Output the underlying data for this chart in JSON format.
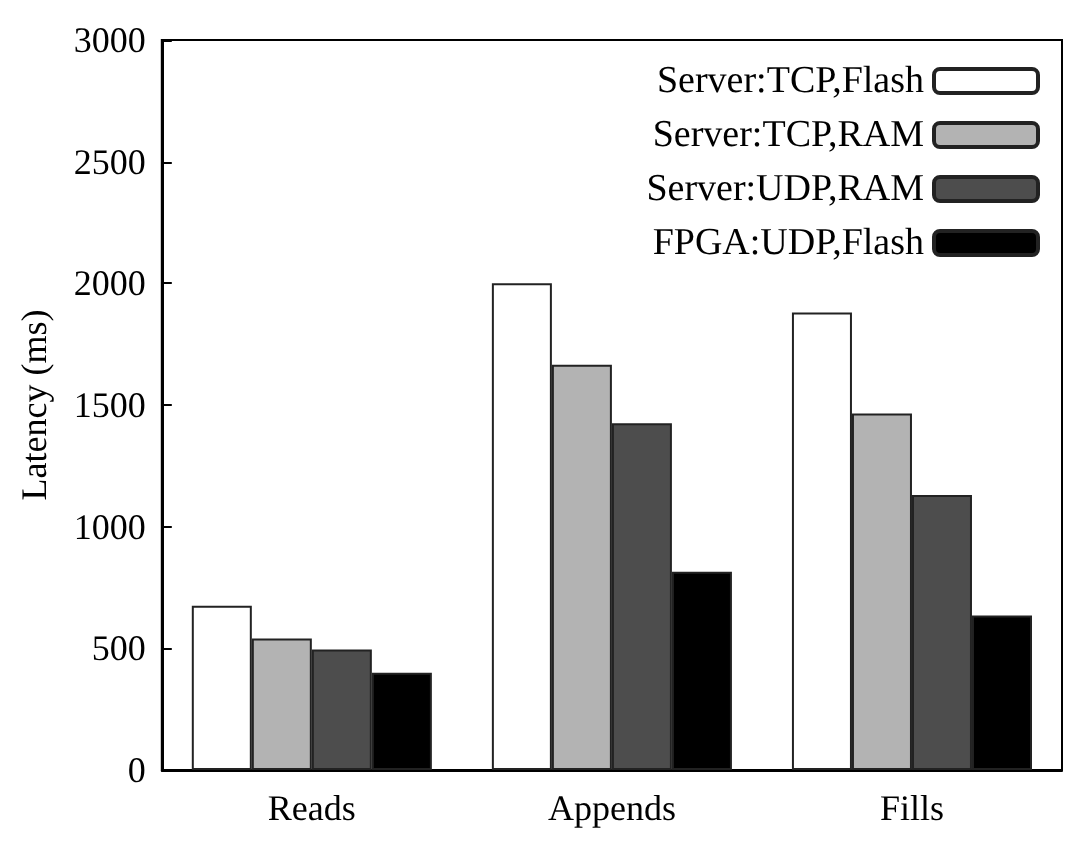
{
  "chart_data": {
    "type": "bar",
    "ylabel": "Latency (ms)",
    "categories": [
      "Reads",
      "Appends",
      "Fills"
    ],
    "series": [
      {
        "name": "Server:TCP,Flash",
        "color": "#ffffff",
        "values": [
          675,
          2000,
          1880
        ]
      },
      {
        "name": "Server:TCP,RAM",
        "color": "#b3b3b3",
        "values": [
          540,
          1665,
          1465
        ]
      },
      {
        "name": "Server:UDP,RAM",
        "color": "#4d4d4d",
        "values": [
          495,
          1425,
          1130
        ]
      },
      {
        "name": "FPGA:UDP,Flash",
        "color": "#000000",
        "values": [
          400,
          815,
          635
        ]
      }
    ],
    "ylim": [
      0,
      3000
    ],
    "yticks": [
      0,
      500,
      1000,
      1500,
      2000,
      2500,
      3000
    ],
    "grid": false,
    "legend": "top right"
  }
}
